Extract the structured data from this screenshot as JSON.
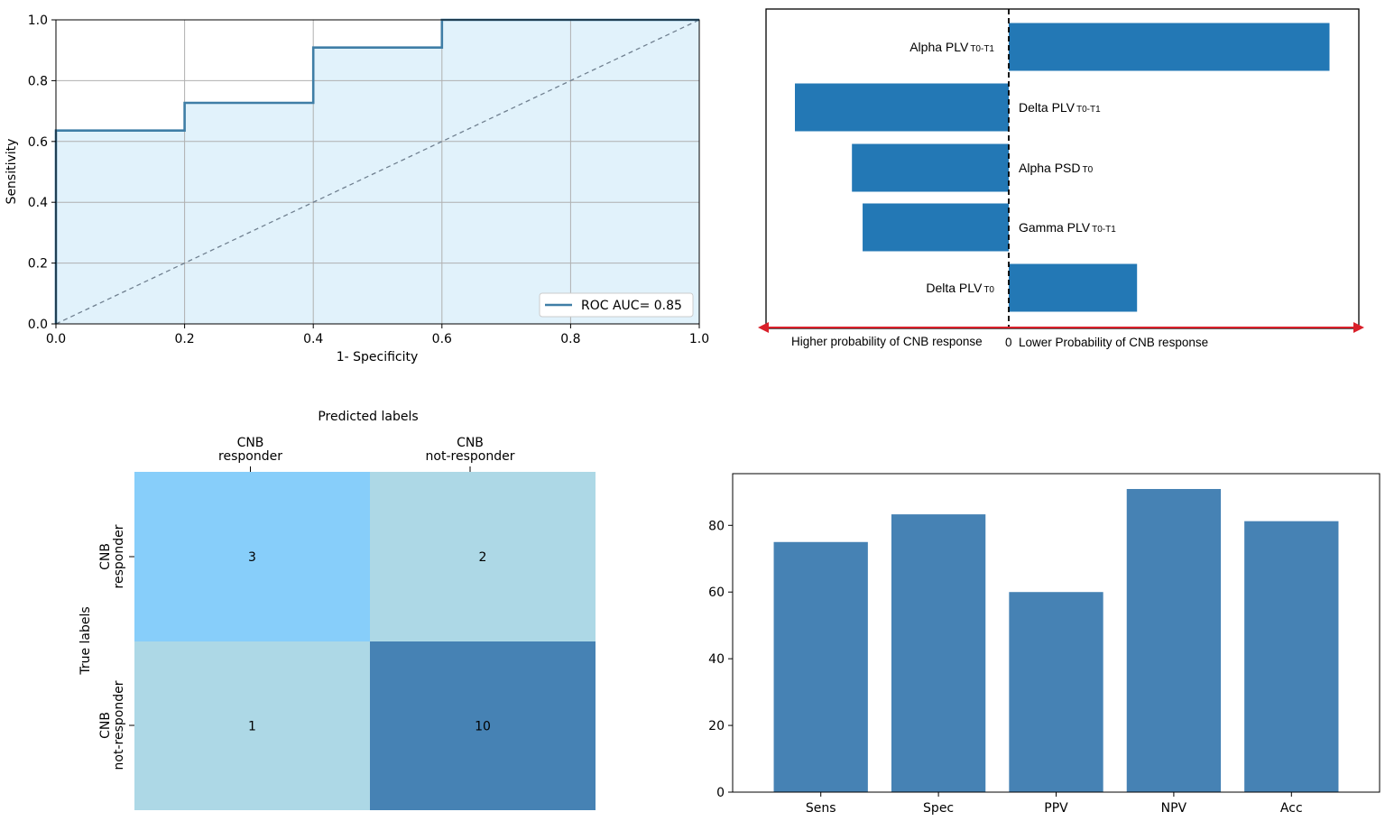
{
  "colors": {
    "roc_line": "#3f7ea6",
    "roc_fill": "#e1f2fb",
    "diag": "#708090",
    "grid": "#b0b0b0",
    "bar": "#2378b5",
    "arrow": "#d9202a",
    "cm_high": "#87cefa",
    "cm_mid": "#add8e6",
    "cm_dark": "#4682b4",
    "metric_bar": "#4682b4"
  },
  "chart_data": [
    {
      "type": "line",
      "xlabel": "1- Specificity",
      "ylabel": "Sensitivity",
      "xlim": [
        0,
        1
      ],
      "ylim": [
        0,
        1
      ],
      "grid": true,
      "x_ticks": [
        "0.0",
        "0.2",
        "0.4",
        "0.6",
        "0.8",
        "1.0"
      ],
      "y_ticks": [
        "0.0",
        "0.2",
        "0.4",
        "0.6",
        "0.8",
        "1.0"
      ],
      "series": [
        {
          "name": "ROC AUC= 0.85",
          "x": [
            0,
            0,
            0.2,
            0.2,
            0.4,
            0.4,
            0.6,
            0.6,
            1.0
          ],
          "y": [
            0,
            0.636,
            0.636,
            0.727,
            0.727,
            0.909,
            0.909,
            1.0,
            1.0
          ]
        }
      ],
      "legend_position": "bottom-right"
    },
    {
      "type": "bar",
      "orientation": "horizontal",
      "categories": [
        "Alpha PLV",
        "Delta PLV",
        "Alpha PSD",
        "Gamma PLV",
        "Delta PLV"
      ],
      "subscripts": [
        "T0-T1",
        "T0-T1",
        "T0",
        "T0-T1",
        "T0"
      ],
      "values": [
        0.9,
        -0.6,
        -0.44,
        -0.41,
        0.36
      ],
      "zero_label": "0",
      "left_annotation": "Higher probability of CNB response",
      "right_annotation": "Lower Probability of CNB response"
    },
    {
      "type": "heatmap",
      "title": "Predicted labels",
      "ylabel": "True labels",
      "x_categories": [
        [
          "CNB",
          "responder"
        ],
        [
          "CNB",
          "not-responder"
        ]
      ],
      "y_categories": [
        [
          "CNB",
          "responder"
        ],
        [
          "CNB",
          "not-responder"
        ]
      ],
      "matrix": [
        [
          3,
          2
        ],
        [
          1,
          10
        ]
      ]
    },
    {
      "type": "bar",
      "categories": [
        "Sens",
        "Spec",
        "PPV",
        "NPV",
        "Acc"
      ],
      "values": [
        75,
        83.3,
        60,
        90.9,
        81.25
      ],
      "ylim": [
        0,
        95.5
      ],
      "y_ticks": [
        0,
        20,
        40,
        60,
        80
      ]
    }
  ]
}
